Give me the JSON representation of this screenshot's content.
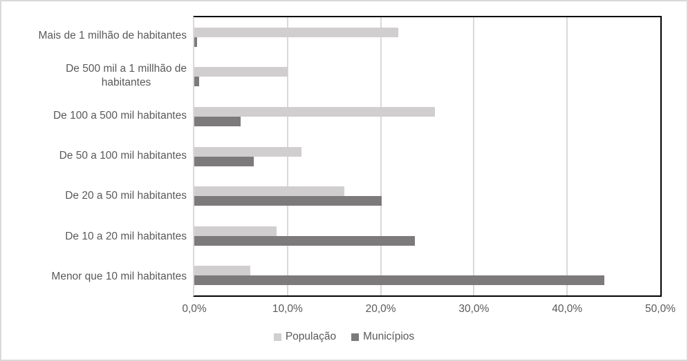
{
  "chart_data": {
    "type": "bar",
    "orientation": "horizontal",
    "title": "",
    "xlabel": "",
    "ylabel": "",
    "categories": [
      "Mais de 1 milhão de habitantes",
      "De 500 mil a 1 millhão de\nhabitantes",
      "De 100 a 500 mil habitantes",
      "De 50 a 100 mil habitantes",
      "De 20 a 50 mil habitantes",
      "De 10 a 20 mil habitantes",
      "Menor que 10 mil habitantes"
    ],
    "series": [
      {
        "name": "População",
        "color": "#d0cece",
        "values": [
          21.9,
          10.0,
          25.8,
          11.5,
          16.1,
          8.8,
          6.0
        ]
      },
      {
        "name": "Municípios",
        "color": "#7c7a7a",
        "values": [
          0.3,
          0.5,
          5.0,
          6.4,
          20.1,
          23.7,
          44.0
        ]
      }
    ],
    "x_axis": {
      "min": 0,
      "max": 50,
      "tick_step": 10,
      "ticks": [
        "0,0%",
        "10,0%",
        "20,0%",
        "30,0%",
        "40,0%",
        "50,0%"
      ],
      "grid": true
    },
    "legend": {
      "position": "bottom",
      "entries": [
        "População",
        "Municípios"
      ]
    }
  },
  "colors": {
    "gridline": "#d9d9d9",
    "plot_border": "#000000",
    "outer_border": "#d9d9d9",
    "axis_text": "#595959",
    "background": "#ffffff",
    "series_populacao": "#d0cece",
    "series_municipios": "#7c7a7a"
  }
}
